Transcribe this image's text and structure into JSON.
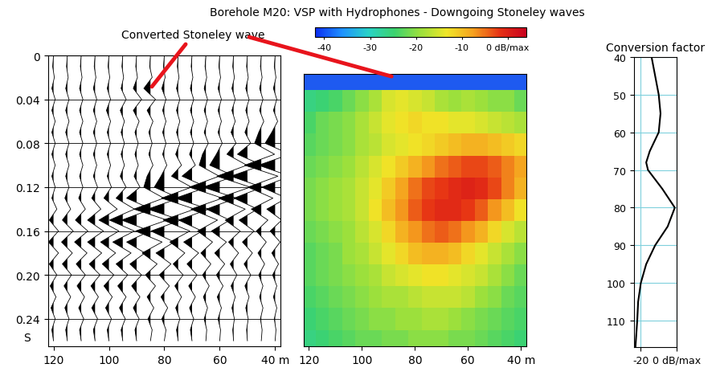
{
  "chart_data": [
    {
      "type": "wiggle",
      "title": "Borehole M20: VSP with Hydrophones - Downgoing Stoneley waves",
      "annotation": {
        "text": "Converted Stoneley wave",
        "x": 85,
        "y": 0.03
      },
      "depths": [
        40,
        45,
        50,
        55,
        60,
        65,
        70,
        75,
        80,
        85,
        90,
        95,
        100,
        105,
        110,
        115,
        120
      ],
      "times": [
        0,
        0.01,
        0.02,
        0.03,
        0.04,
        0.05,
        0.06,
        0.07,
        0.08,
        0.09,
        0.1,
        0.11,
        0.12,
        0.13,
        0.14,
        0.15,
        0.16,
        0.17,
        0.18,
        0.19,
        0.2,
        0.21,
        0.22,
        0.23,
        0.24,
        0.25,
        0.26
      ],
      "amplitudes": [
        [
          0,
          0.05,
          -0.05,
          0.1,
          -0.1,
          0.1,
          -0.15,
          0.2,
          0.6,
          -0.9,
          1.0,
          -0.9,
          0.8,
          -0.7,
          0.5,
          -0.4,
          0.3,
          -0.3,
          0.2,
          -0.2,
          0.15,
          -0.1,
          0.1,
          -0.1,
          0.05,
          -0.05,
          0
        ],
        [
          0,
          0.05,
          -0.05,
          0.1,
          -0.1,
          0.1,
          -0.15,
          0.15,
          0.4,
          -0.8,
          1.0,
          -1.0,
          0.8,
          -0.7,
          0.6,
          -0.4,
          0.3,
          -0.3,
          0.2,
          -0.2,
          0.15,
          -0.1,
          0.1,
          -0.1,
          0.05,
          -0.05,
          0
        ],
        [
          0,
          0.05,
          -0.05,
          0.1,
          -0.1,
          0.1,
          -0.1,
          0.15,
          -0.2,
          0.6,
          -0.9,
          1.0,
          -0.9,
          0.8,
          -0.6,
          0.5,
          -0.4,
          0.3,
          -0.3,
          0.2,
          -0.2,
          0.15,
          -0.1,
          0.1,
          -0.05,
          0.05,
          0
        ],
        [
          0,
          0.05,
          -0.05,
          0.1,
          -0.1,
          0.1,
          -0.1,
          0.15,
          -0.15,
          0.4,
          -0.8,
          1.0,
          -1.0,
          0.9,
          -0.7,
          0.5,
          -0.4,
          0.3,
          -0.3,
          0.2,
          -0.2,
          0.15,
          -0.1,
          0.1,
          -0.05,
          0.05,
          0
        ],
        [
          0,
          0.05,
          -0.05,
          0.1,
          -0.1,
          0.1,
          -0.1,
          0.1,
          -0.15,
          0.2,
          0.6,
          -0.9,
          1.0,
          -1.0,
          0.8,
          -0.6,
          0.5,
          -0.4,
          0.3,
          -0.3,
          0.2,
          -0.2,
          0.15,
          -0.1,
          0.1,
          -0.05,
          0
        ],
        [
          0,
          0.05,
          -0.05,
          0.1,
          -0.1,
          0.1,
          -0.1,
          0.1,
          -0.15,
          0.2,
          0.4,
          -0.8,
          1.0,
          -1.0,
          0.9,
          -0.7,
          0.5,
          -0.4,
          0.3,
          -0.3,
          0.2,
          -0.2,
          0.15,
          -0.1,
          0.1,
          -0.05,
          0
        ],
        [
          0,
          0.05,
          -0.05,
          0.1,
          -0.1,
          0.1,
          -0.1,
          0.1,
          -0.1,
          0.15,
          -0.2,
          0.6,
          -0.9,
          1.0,
          -1.0,
          0.8,
          -0.6,
          0.5,
          -0.4,
          0.3,
          -0.3,
          0.2,
          -0.2,
          0.15,
          -0.1,
          0.1,
          0
        ],
        [
          0,
          0.05,
          -0.05,
          0.1,
          -0.1,
          0.1,
          -0.1,
          0.1,
          -0.1,
          0.15,
          -0.2,
          0.4,
          -0.8,
          1.0,
          -1.0,
          0.9,
          -0.7,
          0.5,
          -0.4,
          0.3,
          -0.3,
          0.2,
          -0.2,
          0.15,
          -0.1,
          0.1,
          0
        ],
        [
          0,
          0.05,
          -0.05,
          0.15,
          -0.1,
          0.1,
          -0.1,
          0.1,
          -0.1,
          0.1,
          -0.15,
          0.2,
          0.6,
          -0.9,
          1.0,
          -1.0,
          0.8,
          -0.6,
          0.5,
          -0.4,
          0.3,
          -0.3,
          0.2,
          -0.2,
          0.15,
          -0.1,
          0
        ],
        [
          0,
          0.05,
          -0.1,
          0.4,
          -0.3,
          0.2,
          -0.15,
          0.1,
          -0.1,
          0.1,
          -0.15,
          0.2,
          0.4,
          -0.8,
          1.0,
          -1.0,
          0.9,
          -0.7,
          0.5,
          -0.4,
          0.3,
          -0.3,
          0.2,
          -0.2,
          0.15,
          -0.1,
          0
        ],
        [
          0,
          0.05,
          -0.05,
          0.2,
          -0.3,
          0.2,
          -0.15,
          0.1,
          -0.1,
          0.1,
          -0.1,
          0.15,
          -0.2,
          0.6,
          -0.9,
          0.9,
          -0.8,
          0.6,
          -0.5,
          0.4,
          -0.3,
          0.3,
          -0.2,
          0.2,
          -0.15,
          0.1,
          0
        ],
        [
          0,
          0.05,
          -0.05,
          0.1,
          -0.2,
          0.15,
          -0.1,
          0.1,
          -0.1,
          0.1,
          -0.1,
          0.15,
          -0.2,
          0.4,
          -0.7,
          0.8,
          -0.7,
          0.6,
          -0.5,
          0.4,
          -0.3,
          0.3,
          -0.2,
          0.2,
          -0.15,
          0.1,
          0
        ],
        [
          0,
          0.05,
          -0.05,
          0.1,
          -0.1,
          0.15,
          -0.1,
          0.1,
          -0.1,
          0.1,
          -0.1,
          0.1,
          -0.15,
          0.3,
          -0.5,
          0.6,
          -0.6,
          0.5,
          -0.4,
          0.4,
          -0.3,
          0.3,
          -0.2,
          0.2,
          -0.15,
          0.1,
          0
        ],
        [
          0,
          0.05,
          -0.05,
          0.1,
          -0.1,
          0.1,
          -0.1,
          0.1,
          -0.1,
          0.1,
          -0.1,
          0.1,
          -0.15,
          0.2,
          -0.35,
          0.45,
          -0.5,
          0.45,
          -0.4,
          0.35,
          -0.3,
          0.25,
          -0.2,
          0.2,
          -0.15,
          0.1,
          0
        ],
        [
          0,
          0.05,
          -0.05,
          0.1,
          -0.1,
          0.1,
          -0.1,
          0.1,
          -0.1,
          0.1,
          -0.1,
          0.1,
          -0.1,
          0.15,
          -0.25,
          0.35,
          -0.4,
          0.4,
          -0.35,
          0.3,
          -0.25,
          0.25,
          -0.2,
          0.15,
          -0.15,
          0.1,
          0
        ],
        [
          0,
          0.05,
          -0.05,
          0.1,
          -0.1,
          0.1,
          -0.1,
          0.1,
          -0.1,
          0.1,
          -0.1,
          0.1,
          -0.1,
          0.15,
          -0.2,
          0.3,
          -0.35,
          0.35,
          -0.3,
          0.3,
          -0.25,
          0.2,
          -0.2,
          0.15,
          -0.1,
          0.1,
          0
        ],
        [
          0,
          0.05,
          -0.05,
          0.1,
          -0.1,
          0.1,
          -0.1,
          0.1,
          -0.1,
          0.1,
          -0.1,
          0.1,
          -0.1,
          0.1,
          -0.2,
          0.25,
          -0.3,
          0.3,
          -0.3,
          0.25,
          -0.2,
          0.2,
          -0.15,
          0.15,
          -0.1,
          0.1,
          0
        ]
      ],
      "color": "#000000",
      "xlim": [
        122,
        38
      ],
      "xticks": [
        120,
        100,
        80,
        60,
        {
          "value": 40,
          "label": "40 m"
        }
      ],
      "ylim": [
        0.265,
        0
      ],
      "yticks": [
        0,
        0.04,
        0.08,
        0.12,
        0.16,
        {
          "value": 0.2,
          "label": "0.20"
        },
        0.24
      ],
      "ylabel": "S",
      "grid": true
    },
    {
      "type": "heatmap",
      "annotation_target": {
        "x": 88,
        "y": 0.018
      },
      "depths": [
        40,
        45,
        50,
        55,
        60,
        65,
        70,
        75,
        80,
        85,
        90,
        95,
        100,
        105,
        110,
        115,
        120
      ],
      "times": [
        0.02,
        0.04,
        0.06,
        0.08,
        0.1,
        0.12,
        0.14,
        0.16,
        0.18,
        0.2,
        0.22,
        0.24,
        0.26
      ],
      "cells": [
        [
          -45,
          -45,
          -45,
          -45,
          -45,
          -45,
          -45,
          -45,
          -45,
          -45,
          -45,
          -45,
          -45,
          -45,
          -45,
          -45,
          -45
        ],
        [
          -22,
          -20,
          -20,
          -19,
          -18,
          -19,
          -18,
          -16,
          -15,
          -14,
          -15,
          -18,
          -20,
          -22,
          -24,
          -25,
          -26
        ],
        [
          -18,
          -17,
          -16,
          -15,
          -14,
          -14,
          -13,
          -13,
          -12,
          -13,
          -14,
          -16,
          -18,
          -20,
          -21,
          -22,
          -24
        ],
        [
          -12,
          -11,
          -10,
          -9,
          -9,
          -10,
          -11,
          -12,
          -13,
          -14,
          -15,
          -17,
          -18,
          -20,
          -21,
          -22,
          -23
        ],
        [
          -8,
          -6,
          -4,
          -3,
          -3,
          -4,
          -5,
          -7,
          -9,
          -11,
          -13,
          -15,
          -17,
          -19,
          -20,
          -21,
          -22
        ],
        [
          -9,
          -6,
          -3,
          -1,
          0,
          -1,
          -2,
          -3,
          -5,
          -8,
          -11,
          -14,
          -16,
          -18,
          -19,
          -20,
          -21
        ],
        [
          -13,
          -10,
          -7,
          -4,
          -2,
          -1,
          -1,
          -2,
          -4,
          -7,
          -10,
          -13,
          -16,
          -18,
          -19,
          -20,
          -21
        ],
        [
          -17,
          -15,
          -12,
          -9,
          -7,
          -5,
          -4,
          -5,
          -7,
          -9,
          -12,
          -15,
          -17,
          -19,
          -20,
          -21,
          -22
        ],
        [
          -20,
          -18,
          -16,
          -14,
          -12,
          -10,
          -9,
          -9,
          -10,
          -12,
          -14,
          -16,
          -18,
          -19,
          -21,
          -22,
          -23
        ],
        [
          -22,
          -20,
          -18,
          -16,
          -15,
          -14,
          -13,
          -13,
          -14,
          -15,
          -16,
          -18,
          -19,
          -20,
          -21,
          -22,
          -23
        ],
        [
          -23,
          -22,
          -20,
          -19,
          -17,
          -16,
          -16,
          -16,
          -17,
          -18,
          -18,
          -19,
          -20,
          -21,
          -22,
          -23,
          -24
        ],
        [
          -24,
          -23,
          -22,
          -21,
          -20,
          -19,
          -18,
          -18,
          -19,
          -19,
          -20,
          -20,
          -21,
          -22,
          -23,
          -24,
          -25
        ],
        [
          -25,
          -24,
          -23,
          -22,
          -21,
          -21,
          -20,
          -20,
          -20,
          -21,
          -21,
          -22,
          -22,
          -23,
          -24,
          -25,
          -26
        ]
      ],
      "xlim": [
        122,
        38
      ],
      "xticks": [
        120,
        100,
        80,
        60,
        {
          "value": 40,
          "label": "40 m"
        }
      ],
      "ylim": [
        0.265,
        0.015
      ],
      "tick_labels": "x",
      "colorbar_range": [
        -42,
        4
      ],
      "colorbar_ticks": [
        -40,
        -30,
        -20,
        -10,
        {
          "value": 0,
          "label": "0 dB/max"
        }
      ]
    },
    {
      "type": "line",
      "title": "Conversion factor",
      "x": [
        -14,
        -12,
        -10,
        -9,
        -10,
        -15,
        -17,
        -16,
        -8,
        -1,
        -5,
        -12,
        -17,
        -20,
        -21.5,
        -22,
        -23
      ],
      "y": [
        40,
        45,
        50,
        55,
        60,
        65,
        68,
        70,
        75,
        80,
        85,
        90,
        95,
        100,
        105,
        110,
        117
      ],
      "color": "#000000",
      "xlim": [
        -24,
        0
      ],
      "xticks": [
        -20,
        {
          "value": 0,
          "label": "0 dB/max"
        }
      ],
      "ylim": [
        117,
        40
      ],
      "yticks": [
        40,
        50,
        60,
        70,
        80,
        90,
        100,
        110
      ],
      "grid": true
    }
  ]
}
